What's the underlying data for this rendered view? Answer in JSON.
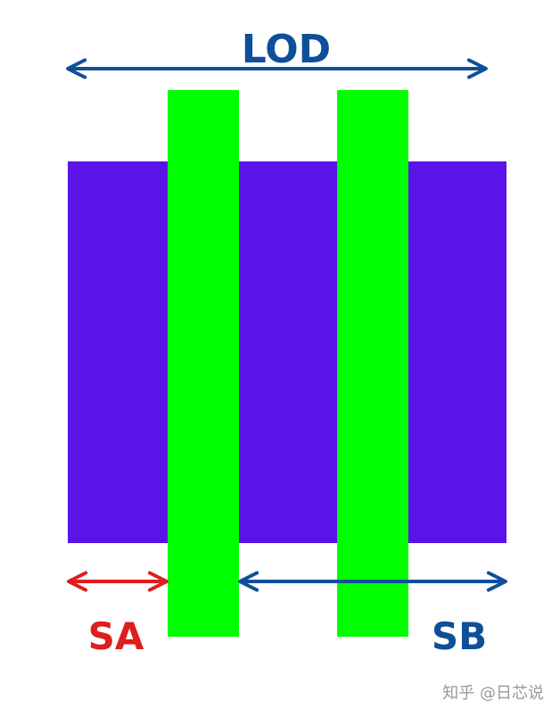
{
  "labels": {
    "lod": "LOD",
    "sa": "SA",
    "sb": "SB"
  },
  "watermark": "知乎 @日芯说",
  "colors": {
    "active_region": "#5b14e8",
    "gate": "#00ff00",
    "lod_arrow": "#0e4f99",
    "sa_arrow": "#dd1f1f",
    "sb_arrow": "#0e4f99",
    "watermark": "#9a9a9a",
    "background": "#ffffff"
  }
}
